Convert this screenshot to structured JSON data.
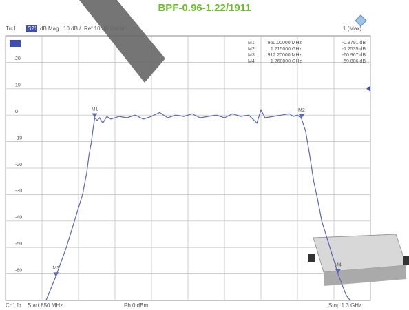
{
  "chart_data": {
    "type": "line",
    "title": "BPF-0.96-1.22/1911",
    "header": [
      "Trc1",
      "S21",
      "dB Mag",
      "10 dB /",
      "Ref 10 dB",
      "Cal int",
      "1 (Max)"
    ],
    "footer": [
      "Ch1",
      "fb",
      "Start 850 MHz",
      "Pb 0 dBm",
      "Stop 1.3 GHz"
    ],
    "ref_level": 10,
    "color": "#5b67b5",
    "grid": true,
    "xlim": [
      850,
      1300
    ],
    "xticks": [
      850,
      895,
      940,
      985,
      1030,
      1075,
      1120,
      1165,
      1210,
      1255,
      1300
    ],
    "ylim": [
      -70,
      30
    ],
    "yticks": [
      -60,
      -50,
      -40,
      -30,
      -20,
      -10,
      0,
      10,
      20
    ],
    "x": [
      900,
      912,
      925,
      935,
      945,
      950,
      953,
      956,
      958,
      960,
      963,
      966,
      970,
      975,
      980,
      990,
      1000,
      1010,
      1020,
      1030,
      1040,
      1050,
      1060,
      1070,
      1080,
      1090,
      1100,
      1110,
      1120,
      1130,
      1140,
      1150,
      1160,
      1165,
      1170,
      1180,
      1190,
      1200,
      1205,
      1210,
      1215,
      1220,
      1225,
      1230,
      1235,
      1240,
      1245,
      1250,
      1255,
      1260,
      1265,
      1270,
      1275
    ],
    "values": [
      -70,
      -61,
      -50,
      -40,
      -30,
      -22,
      -15,
      -10,
      -5,
      -1,
      -2,
      -1,
      -3,
      -0.5,
      -1.5,
      -0.5,
      -1,
      0,
      -1.5,
      -0.5,
      1,
      -1,
      0,
      -0.5,
      0.5,
      -1,
      -0.5,
      0,
      -1,
      0.5,
      -0.5,
      0,
      -3,
      2,
      -1,
      -0.5,
      0,
      0.5,
      -0.5,
      0,
      -1.3,
      -6,
      -15,
      -25,
      -32,
      -40,
      -45,
      -50,
      -55,
      -60,
      -64,
      -68,
      -70
    ],
    "markers": [
      {
        "label": "M1",
        "x": 960,
        "y": -0.8791,
        "readout": [
          "M1",
          "960.00000 MHz",
          "-0.8791 dB"
        ]
      },
      {
        "label": "M2",
        "x": 1215,
        "y": -1.2535,
        "readout": [
          "M2",
          "1.215000 GHz",
          "-1.2535 dB"
        ]
      },
      {
        "label": "M3",
        "x": 912.2,
        "y": -60.967,
        "readout": [
          "M3",
          "912.20000 MHz",
          "-60.967 dB"
        ]
      },
      {
        "label": "M4",
        "x": 1260,
        "y": -59.806,
        "readout": [
          "M4",
          "1.260000 GHz",
          "-59.806 dB"
        ]
      }
    ]
  }
}
